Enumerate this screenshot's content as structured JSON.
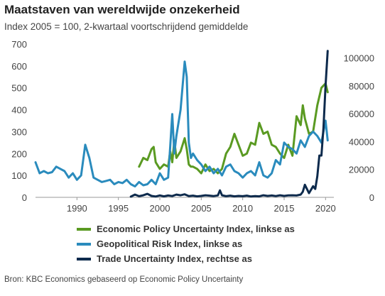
{
  "chart_data": {
    "type": "line",
    "title": "Maatstaven van wereldwijde onzekerheid",
    "subtitle": "Index 2005 = 100, 2-kwartaal voortschrijdend gemiddelde",
    "source": "Bron: KBC Economics gebaseerd op Economic Policy Uncertainty",
    "xlim": [
      1985,
      2021
    ],
    "xticks": [
      1990,
      1995,
      2000,
      2005,
      2010,
      2015,
      2020
    ],
    "ylim_left": [
      0,
      700
    ],
    "yticks_left": [
      0,
      100,
      200,
      300,
      400,
      500,
      600,
      700
    ],
    "ylim_right": [
      0,
      110000
    ],
    "yticks_right": [
      0,
      20000,
      40000,
      60000,
      80000,
      100000
    ],
    "yticklabels_right": [
      "0",
      "20000",
      "40000",
      "60000",
      "80000",
      "100000"
    ],
    "legend_position": "bottom",
    "grid": false,
    "series": [
      {
        "name": "Economic Policy Uncertainty Index, linkse as",
        "axis": "left",
        "color": "#5a9a22",
        "x": [
          1997.5,
          1998,
          1998.5,
          1999,
          1999.25,
          1999.5,
          2000,
          2000.5,
          2001,
          2001.25,
          2001.5,
          2001.75,
          2002,
          2002.5,
          2003,
          2003.25,
          2003.5,
          2003.75,
          2004,
          2004.5,
          2005,
          2005.5,
          2006,
          2006.5,
          2007,
          2007.5,
          2008,
          2008.5,
          2009,
          2009.5,
          2010,
          2010.5,
          2011,
          2011.5,
          2012,
          2012.5,
          2013,
          2013.5,
          2014,
          2014.5,
          2015,
          2015.5,
          2016,
          2016.5,
          2017,
          2017.25,
          2017.5,
          2018,
          2018.5,
          2019,
          2019.5,
          2020,
          2020.25
        ],
        "y": [
          140,
          180,
          170,
          220,
          230,
          160,
          130,
          150,
          140,
          210,
          160,
          260,
          180,
          210,
          270,
          220,
          150,
          140,
          140,
          130,
          110,
          150,
          120,
          130,
          110,
          130,
          200,
          230,
          290,
          240,
          190,
          200,
          250,
          240,
          340,
          290,
          300,
          240,
          230,
          200,
          180,
          240,
          190,
          370,
          330,
          420,
          360,
          290,
          300,
          420,
          500,
          520,
          480
        ]
      },
      {
        "name": "Geopolitical Risk Index, linkse as",
        "axis": "left",
        "color": "#2a8bbd",
        "x": [
          1985,
          1985.5,
          1986,
          1986.5,
          1987,
          1987.5,
          1988,
          1988.5,
          1989,
          1989.5,
          1990,
          1990.5,
          1991,
          1991.5,
          1992,
          1992.5,
          1993,
          1993.5,
          1994,
          1994.5,
          1995,
          1995.5,
          1996,
          1996.5,
          1997,
          1997.5,
          1998,
          1998.5,
          1999,
          1999.5,
          2000,
          2000.5,
          2001,
          2001.25,
          2001.5,
          2001.75,
          2002,
          2002.5,
          2003,
          2003.25,
          2003.5,
          2003.75,
          2004,
          2004.5,
          2005,
          2005.5,
          2006,
          2006.5,
          2007,
          2007.5,
          2008,
          2008.5,
          2009,
          2009.5,
          2010,
          2010.5,
          2011,
          2011.5,
          2012,
          2012.5,
          2013,
          2013.5,
          2014,
          2014.5,
          2015,
          2015.5,
          2016,
          2016.5,
          2017,
          2017.5,
          2018,
          2018.5,
          2019,
          2019.5,
          2020,
          2020.25
        ],
        "y": [
          160,
          110,
          120,
          110,
          115,
          140,
          130,
          120,
          90,
          110,
          80,
          100,
          240,
          180,
          90,
          80,
          70,
          75,
          80,
          60,
          70,
          65,
          80,
          60,
          50,
          70,
          55,
          60,
          80,
          60,
          110,
          80,
          90,
          230,
          380,
          200,
          280,
          400,
          620,
          550,
          250,
          180,
          200,
          170,
          150,
          120,
          140,
          110,
          130,
          100,
          140,
          150,
          120,
          110,
          90,
          110,
          120,
          100,
          160,
          100,
          90,
          110,
          170,
          150,
          250,
          230,
          220,
          200,
          260,
          230,
          280,
          300,
          280,
          250,
          350,
          260
        ]
      },
      {
        "name": "Trade Uncertainty Index, rechtse as",
        "axis": "right",
        "color": "#0d2a4c",
        "x": [
          1996.5,
          1997,
          1997.5,
          1998,
          1998.5,
          1999,
          1999.5,
          2000,
          2000.5,
          2001,
          2001.5,
          2002,
          2002.5,
          2003,
          2003.5,
          2004,
          2004.5,
          2005,
          2005.5,
          2006,
          2006.5,
          2007,
          2007.25,
          2007.5,
          2008,
          2008.5,
          2009,
          2009.5,
          2010,
          2010.5,
          2011,
          2011.5,
          2012,
          2012.5,
          2013,
          2013.5,
          2014,
          2014.5,
          2015,
          2015.5,
          2016,
          2016.5,
          2017,
          2017.25,
          2017.5,
          2018,
          2018.5,
          2018.75,
          2019,
          2019.25,
          2019.5,
          2019.75,
          2020,
          2020.25
        ],
        "y": [
          500,
          2000,
          800,
          1500,
          2500,
          1000,
          600,
          1400,
          700,
          1300,
          900,
          2000,
          1500,
          2200,
          900,
          1200,
          700,
          1000,
          1500,
          1200,
          900,
          1400,
          5000,
          1500,
          800,
          1200,
          700,
          1000,
          800,
          1200,
          600,
          900,
          700,
          1500,
          1000,
          1300,
          900,
          1500,
          1000,
          1400,
          1500,
          1300,
          2000,
          4000,
          9000,
          3000,
          8000,
          6000,
          15000,
          30000,
          30000,
          50000,
          80000,
          105000
        ]
      }
    ]
  }
}
